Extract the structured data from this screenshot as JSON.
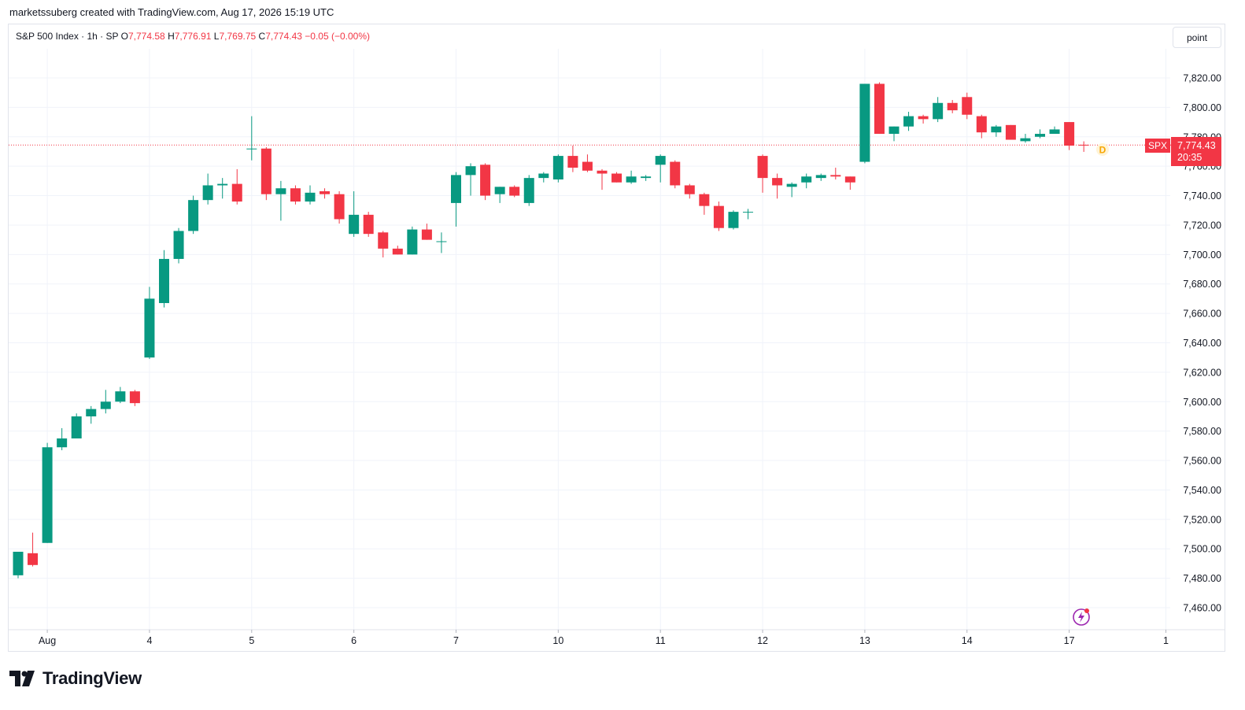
{
  "header": {
    "credit": "marketssuberg created with TradingView.com, Aug 17, 2026 15:19 UTC"
  },
  "legend": {
    "symbol": "S&P 500 Index · 1h · SP",
    "open_key": "O",
    "open": "7,774.58",
    "high_key": "H",
    "high": "7,776.91",
    "low_key": "L",
    "low": "7,769.75",
    "close_key": "C",
    "close": "7,774.43",
    "change": "−0.05 (−0.00%)"
  },
  "toolbar": {
    "point_label": "point"
  },
  "price_tag": {
    "ticker": "SPX",
    "price": "7,774.43",
    "countdown": "20:35"
  },
  "dividend_marker": "D",
  "branding": {
    "logo_text": "TradingView"
  },
  "colors": {
    "up": "#089981",
    "down": "#f23645",
    "grid": "#f0f3fa",
    "axis_text": "#131722",
    "dividend": "#f7a600"
  },
  "chart_data": {
    "type": "candlestick",
    "title": "S&P 500 Index",
    "interval": "1h",
    "ylim": [
      7450,
      7840
    ],
    "y_ticks": [
      "7,460.00",
      "7,480.00",
      "7,500.00",
      "7,520.00",
      "7,540.00",
      "7,560.00",
      "7,580.00",
      "7,600.00",
      "7,620.00",
      "7,640.00",
      "7,660.00",
      "7,680.00",
      "7,700.00",
      "7,720.00",
      "7,740.00",
      "7,760.00",
      "7,780.00",
      "7,800.00",
      "7,820.00"
    ],
    "y_tick_values": [
      7460,
      7480,
      7500,
      7520,
      7540,
      7560,
      7580,
      7600,
      7620,
      7640,
      7660,
      7680,
      7700,
      7720,
      7740,
      7760,
      7780,
      7800,
      7820
    ],
    "x_labels": [
      {
        "label": "Aug",
        "bar": 2
      },
      {
        "label": "4",
        "bar": 9
      },
      {
        "label": "5",
        "bar": 16
      },
      {
        "label": "6",
        "bar": 23
      },
      {
        "label": "7",
        "bar": 30
      },
      {
        "label": "10",
        "bar": 37
      },
      {
        "label": "11",
        "bar": 44
      },
      {
        "label": "12",
        "bar": 51
      },
      {
        "label": "13",
        "bar": 58
      },
      {
        "label": "14",
        "bar": 65
      },
      {
        "label": "17",
        "bar": 72
      },
      {
        "label": "1",
        "bar": 79
      }
    ],
    "last_price": 7774.43,
    "candles": [
      [
        7482,
        7498,
        7480,
        7497
      ],
      [
        7497,
        7489,
        7488,
        7511
      ],
      [
        7504,
        7569,
        7504,
        7572
      ],
      [
        7569,
        7575,
        7567,
        7582
      ],
      [
        7575,
        7590,
        7575,
        7592
      ],
      [
        7590,
        7595,
        7585,
        7597
      ],
      [
        7595,
        7600,
        7592,
        7608
      ],
      [
        7600,
        7607,
        7599,
        7610
      ],
      [
        7607,
        7599,
        7597,
        7608
      ],
      [
        7630,
        7670,
        7629,
        7678
      ],
      [
        7667,
        7697,
        7664,
        7703
      ],
      [
        7697,
        7716,
        7694,
        7718
      ],
      [
        7716,
        7737,
        7714,
        7740
      ],
      [
        7737,
        7747,
        7734,
        7755
      ],
      [
        7747,
        7748,
        7738,
        7752
      ],
      [
        7748,
        7736,
        7734,
        7758
      ],
      [
        7772,
        7772,
        7764,
        7794
      ],
      [
        7772,
        7741,
        7737,
        7773
      ],
      [
        7741,
        7745,
        7723,
        7750
      ],
      [
        7745,
        7736,
        7734,
        7747
      ],
      [
        7736,
        7742,
        7734,
        7747
      ],
      [
        7743,
        7741,
        7738,
        7745
      ],
      [
        7741,
        7724,
        7721,
        7743
      ],
      [
        7714,
        7727,
        7712,
        7743
      ],
      [
        7727,
        7714,
        7712,
        7729
      ],
      [
        7715,
        7704,
        7698,
        7716
      ],
      [
        7704,
        7700,
        7700,
        7706
      ],
      [
        7700,
        7717,
        7700,
        7719
      ],
      [
        7717,
        7710,
        7710,
        7721
      ],
      [
        7709,
        7709,
        7701,
        7715
      ],
      [
        7735,
        7754,
        7719,
        7756
      ],
      [
        7754,
        7760,
        7740,
        7762
      ],
      [
        7761,
        7740,
        7737,
        7762
      ],
      [
        7741,
        7746,
        7735,
        7746
      ],
      [
        7746,
        7740,
        7739,
        7747
      ],
      [
        7735,
        7752,
        7733,
        7754
      ],
      [
        7752,
        7755,
        7749,
        7756
      ],
      [
        7751,
        7767,
        7749,
        7768
      ],
      [
        7767,
        7759,
        7756,
        7774
      ],
      [
        7763,
        7757,
        7756,
        7768
      ],
      [
        7757,
        7755,
        7744,
        7758
      ],
      [
        7755,
        7749,
        7749,
        7756
      ],
      [
        7749,
        7753,
        7748,
        7757
      ],
      [
        7752,
        7753,
        7750,
        7754
      ],
      [
        7761,
        7767,
        7749,
        7768
      ],
      [
        7763,
        7747,
        7745,
        7764
      ],
      [
        7747,
        7741,
        7738,
        7748
      ],
      [
        7741,
        7733,
        7727,
        7742
      ],
      [
        7733,
        7718,
        7716,
        7736
      ],
      [
        7718,
        7729,
        7717,
        7730
      ],
      [
        7729,
        7729,
        7724,
        7731
      ],
      [
        7767,
        7752,
        7742,
        7768
      ],
      [
        7752,
        7747,
        7738,
        7755
      ],
      [
        7746,
        7748,
        7739,
        7749
      ],
      [
        7749,
        7753,
        7745,
        7755
      ],
      [
        7752,
        7754,
        7750,
        7755
      ],
      [
        7754,
        7753,
        7751,
        7759
      ],
      [
        7753,
        7749,
        7744,
        7753
      ],
      [
        7763,
        7816,
        7762,
        7816
      ],
      [
        7816,
        7782,
        7782,
        7817
      ],
      [
        7782,
        7787,
        7777,
        7787
      ],
      [
        7787,
        7794,
        7784,
        7797
      ],
      [
        7794,
        7792,
        7789,
        7795
      ],
      [
        7792,
        7803,
        7790,
        7807
      ],
      [
        7803,
        7798,
        7796,
        7805
      ],
      [
        7807,
        7795,
        7792,
        7810
      ],
      [
        7794,
        7783,
        7779,
        7795
      ],
      [
        7783,
        7787,
        7780,
        7788
      ],
      [
        7788,
        7778,
        7778,
        7788
      ],
      [
        7777,
        7779,
        7776,
        7782
      ],
      [
        7780,
        7782,
        7779,
        7785
      ],
      [
        7782,
        7785,
        7783,
        7787
      ],
      [
        7790,
        7774,
        7771,
        7790
      ],
      [
        7774.58,
        7774.43,
        7769.75,
        7776.91
      ]
    ]
  }
}
